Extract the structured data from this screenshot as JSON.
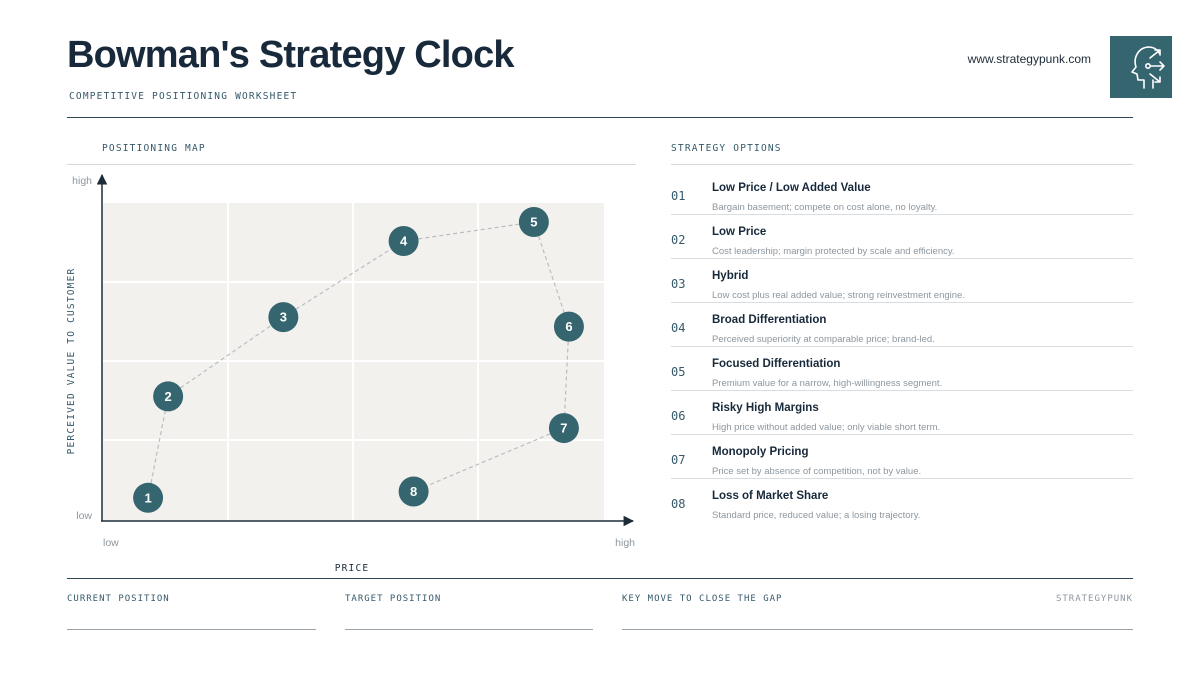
{
  "header": {
    "title": "Bowman's Strategy Clock",
    "subtitle": "COMPETITIVE POSITIONING WORKSHEET",
    "website": "www.strategypunk.com",
    "logo_icon": "head-with-arrows-icon"
  },
  "map": {
    "section_label": "POSITIONING MAP",
    "y_axis_label": "PERCEIVED VALUE TO CUSTOMER",
    "x_axis_label": "PRICE",
    "y_high": "high",
    "y_low": "low",
    "x_low": "low",
    "x_high": "high",
    "points": [
      {
        "label": "1",
        "price": 0.09,
        "value": 0.07
      },
      {
        "label": "2",
        "price": 0.13,
        "value": 0.39
      },
      {
        "label": "3",
        "price": 0.36,
        "value": 0.64
      },
      {
        "label": "4",
        "price": 0.6,
        "value": 0.88
      },
      {
        "label": "5",
        "price": 0.86,
        "value": 0.94
      },
      {
        "label": "6",
        "price": 0.93,
        "value": 0.61
      },
      {
        "label": "7",
        "price": 0.92,
        "value": 0.29
      },
      {
        "label": "8",
        "price": 0.62,
        "value": 0.09
      }
    ],
    "colors": {
      "node": "#35656f",
      "plot_bg": "#f3f1ee",
      "connector": "#b9bdc0",
      "axis": "#1b2b38"
    }
  },
  "options": {
    "section_label": "STRATEGY OPTIONS",
    "items": [
      {
        "num": "01",
        "name": "Low Price / Low Added Value",
        "desc": "Bargain basement; compete on cost alone, no loyalty."
      },
      {
        "num": "02",
        "name": "Low Price",
        "desc": "Cost leadership; margin protected by scale and efficiency."
      },
      {
        "num": "03",
        "name": "Hybrid",
        "desc": "Low cost plus real added value; strong reinvestment engine."
      },
      {
        "num": "04",
        "name": "Broad Differentiation",
        "desc": "Perceived superiority at comparable price; brand-led."
      },
      {
        "num": "05",
        "name": "Focused Differentiation",
        "desc": "Premium value for a narrow, high-willingness segment."
      },
      {
        "num": "06",
        "name": "Risky High Margins",
        "desc": "High price without added value; only viable short term."
      },
      {
        "num": "07",
        "name": "Monopoly Pricing",
        "desc": "Price set by absence of competition, not by value."
      },
      {
        "num": "08",
        "name": "Loss of Market Share",
        "desc": "Standard price, reduced value; a losing trajectory."
      }
    ]
  },
  "footer": {
    "current_position": "CURRENT POSITION",
    "target_position": "TARGET POSITION",
    "key_move": "KEY MOVE TO CLOSE THE GAP",
    "brand": "STRATEGYPUNK"
  }
}
